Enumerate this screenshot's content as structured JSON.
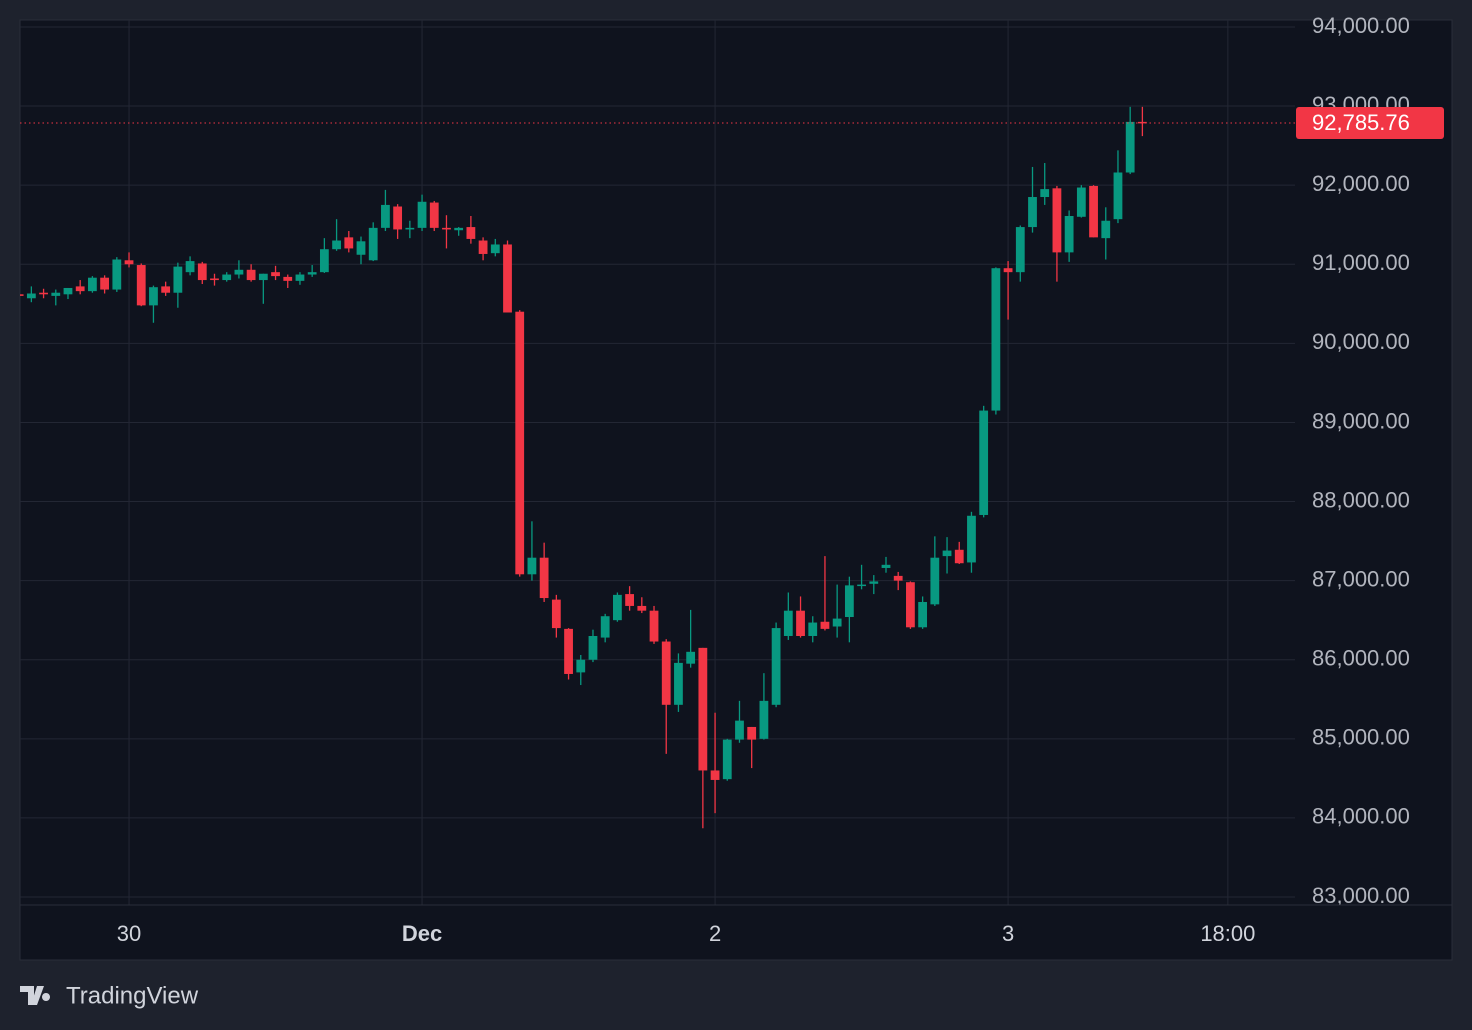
{
  "chart_data": {
    "type": "candlestick",
    "up_color": "#089981",
    "down_color": "#f23645",
    "open": [
      90620,
      90570,
      90640,
      90600,
      90620,
      90720,
      90660,
      90830,
      90680,
      91050,
      90990,
      90480,
      90720,
      90640,
      90900,
      91010,
      90820,
      90800,
      90870,
      90930,
      90800,
      90900,
      90840,
      90790,
      90870,
      90900,
      91190,
      91340,
      91120,
      91050,
      91460,
      91730,
      91440,
      91460,
      91780,
      91460,
      91430,
      91470,
      91300,
      91140,
      91250,
      90400,
      87080,
      87290,
      86760,
      86390,
      85840,
      86000,
      86280,
      86500,
      86830,
      86680,
      86620,
      86230,
      85430,
      85950,
      86150,
      84600,
      84490,
      84990,
      85150,
      85000,
      85430,
      86300,
      86620,
      86300,
      86480,
      86420,
      86540,
      86940,
      86960,
      87160,
      87060,
      86980,
      86410,
      86700,
      87310,
      87390,
      87230,
      87830,
      89150,
      90950,
      90900,
      91470,
      91850,
      91960,
      91150,
      91600,
      91990,
      91330,
      91570,
      92160,
      92800
    ],
    "high": [
      90650,
      90720,
      90690,
      90680,
      90700,
      90800,
      90850,
      90860,
      91090,
      91150,
      91010,
      90730,
      90780,
      91020,
      91100,
      91030,
      90880,
      90900,
      91050,
      91000,
      90880,
      90980,
      90870,
      90900,
      90990,
      91330,
      91570,
      91420,
      91350,
      91530,
      91940,
      91760,
      91550,
      91880,
      91800,
      91620,
      91470,
      91610,
      91340,
      91320,
      91300,
      90420,
      87750,
      87480,
      86820,
      86400,
      86060,
      86380,
      86580,
      86850,
      86930,
      86790,
      86680,
      86260,
      86080,
      86630,
      86150,
      85330,
      85000,
      85480,
      85150,
      85830,
      86470,
      86850,
      86800,
      86550,
      87310,
      86950,
      87050,
      87200,
      87070,
      87300,
      87110,
      86990,
      86800,
      87560,
      87550,
      87490,
      87870,
      89210,
      90960,
      91040,
      91490,
      92230,
      92280,
      91990,
      91680,
      92000,
      92000,
      91720,
      92440,
      92990,
      92990
    ],
    "low": [
      90440,
      90520,
      90570,
      90480,
      90560,
      90620,
      90640,
      90630,
      90650,
      90960,
      90470,
      90260,
      90600,
      90450,
      90860,
      90750,
      90730,
      90780,
      90820,
      90780,
      90500,
      90800,
      90700,
      90740,
      90840,
      90890,
      91170,
      91150,
      91000,
      91040,
      91420,
      91320,
      91330,
      91420,
      91420,
      91200,
      91360,
      91260,
      91050,
      91100,
      90390,
      87050,
      87000,
      86730,
      86280,
      85750,
      85680,
      85970,
      86220,
      86480,
      86620,
      86590,
      86200,
      84810,
      85340,
      85900,
      83870,
      84060,
      84470,
      84950,
      84630,
      84990,
      85400,
      86250,
      86280,
      86220,
      86370,
      86280,
      86220,
      86890,
      86830,
      87100,
      86880,
      86390,
      86390,
      86680,
      87090,
      87210,
      87100,
      87800,
      89100,
      90300,
      90780,
      91400,
      91750,
      90780,
      91030,
      91590,
      91340,
      91060,
      91520,
      92140,
      92620
    ],
    "close": [
      90600,
      90630,
      90620,
      90640,
      90700,
      90660,
      90830,
      90680,
      91060,
      91000,
      90480,
      90710,
      90640,
      90970,
      91040,
      90800,
      90800,
      90870,
      90930,
      90800,
      90880,
      90850,
      90790,
      90870,
      90900,
      91190,
      91300,
      91200,
      91290,
      91460,
      91750,
      91440,
      91460,
      91790,
      91460,
      91440,
      91460,
      91320,
      91130,
      91250,
      90390,
      87080,
      87290,
      86780,
      86400,
      85820,
      86000,
      86300,
      86550,
      86820,
      86680,
      86620,
      86230,
      85430,
      85960,
      86100,
      84600,
      84480,
      84990,
      85230,
      84990,
      85480,
      86400,
      86620,
      86300,
      86470,
      86390,
      86520,
      86940,
      86950,
      86990,
      87200,
      87000,
      86410,
      86730,
      87290,
      87380,
      87220,
      87820,
      89150,
      90950,
      90900,
      91470,
      91850,
      91950,
      91150,
      91610,
      91970,
      91340,
      91550,
      92160,
      92800,
      92785.76
    ],
    "xlim": [
      0.07,
      104.5
    ],
    "xticks": [
      {
        "value": 9,
        "label": "30"
      },
      {
        "value": 33,
        "label": "Dec",
        "bold": true
      },
      {
        "value": 57,
        "label": "2"
      },
      {
        "value": 81,
        "label": "3"
      },
      {
        "value": 99,
        "label": "18:00"
      }
    ],
    "ylim": [
      82899,
      94088
    ],
    "yticks": [
      {
        "value": 83000,
        "label": "83,000.00"
      },
      {
        "value": 84000,
        "label": "84,000.00"
      },
      {
        "value": 85000,
        "label": "85,000.00"
      },
      {
        "value": 86000,
        "label": "86,000.00"
      },
      {
        "value": 87000,
        "label": "87,000.00"
      },
      {
        "value": 88000,
        "label": "88,000.00"
      },
      {
        "value": 89000,
        "label": "89,000.00"
      },
      {
        "value": 90000,
        "label": "90,000.00"
      },
      {
        "value": 91000,
        "label": "91,000.00"
      },
      {
        "value": 92000,
        "label": "92,000.00"
      },
      {
        "value": 93000,
        "label": "93,000.00"
      },
      {
        "value": 94000,
        "label": "94,000.00"
      }
    ],
    "last_price": {
      "value": 92785.76,
      "label": "92,785.76"
    },
    "grid": true
  },
  "brand": "TradingView"
}
